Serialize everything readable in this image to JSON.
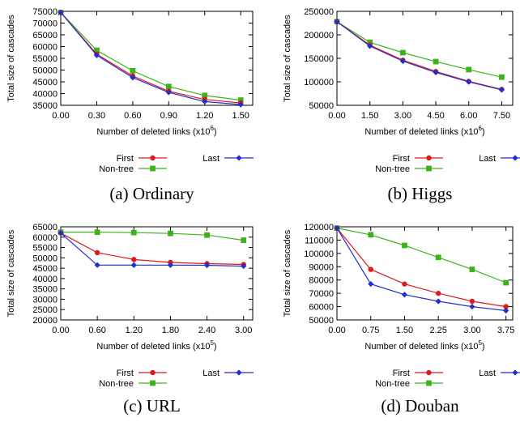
{
  "colors": {
    "First": "#e0191b",
    "Last": "#1f2fd0",
    "Non-tree": "#3cb31b"
  },
  "chart_data": [
    {
      "type": "line",
      "caption": "(a) Ordinary",
      "ylabel": "Total size of cascades",
      "xlabel_text": "Number of deleted links (x10",
      "xlabel_exp": "6",
      "xlabel_close": ")",
      "x": [
        0.0,
        0.3,
        0.6,
        0.9,
        1.2,
        1.5
      ],
      "xlim": [
        0.0,
        1.6
      ],
      "xticks": [
        "0.00",
        "0.30",
        "0.60",
        "0.90",
        "1.20",
        "1.50"
      ],
      "ylim": [
        35000,
        75000
      ],
      "yticks": [
        "35000",
        "40000",
        "45000",
        "50000",
        "55000",
        "60000",
        "65000",
        "70000",
        "75000"
      ],
      "series": [
        {
          "name": "First",
          "values": [
            74500,
            56800,
            47500,
            41000,
            37500,
            36000
          ]
        },
        {
          "name": "Last",
          "values": [
            74500,
            56300,
            46800,
            40500,
            36600,
            35300
          ]
        },
        {
          "name": "Non-tree",
          "values": [
            74500,
            58400,
            49700,
            43000,
            39200,
            37200
          ]
        }
      ]
    },
    {
      "type": "line",
      "caption": "(b) Higgs",
      "ylabel": "Total size of cascades",
      "xlabel_text": "Number of deleted links (x10",
      "xlabel_exp": "6",
      "xlabel_close": ")",
      "x": [
        0.0,
        1.5,
        3.0,
        4.5,
        6.0,
        7.5
      ],
      "xlim": [
        0.0,
        8.0
      ],
      "xticks": [
        "0.00",
        "1.50",
        "3.00",
        "4.50",
        "6.00",
        "7.50"
      ],
      "ylim": [
        50000,
        250000
      ],
      "yticks": [
        "50000",
        "100000",
        "150000",
        "200000",
        "250000"
      ],
      "series": [
        {
          "name": "First",
          "values": [
            228000,
            178000,
            146000,
            122000,
            101000,
            84000
          ]
        },
        {
          "name": "Last",
          "values": [
            228000,
            176000,
            144000,
            120000,
            100000,
            83000
          ]
        },
        {
          "name": "Non-tree",
          "values": [
            228000,
            184000,
            162000,
            143000,
            126000,
            110000
          ]
        }
      ]
    },
    {
      "type": "line",
      "caption": "(c) URL",
      "ylabel": "Total size of cascades",
      "xlabel_text": "Number of deleted links (x10",
      "xlabel_exp": "5",
      "xlabel_close": ")",
      "x": [
        0.0,
        0.6,
        1.2,
        1.8,
        2.4,
        3.0
      ],
      "xlim": [
        0.0,
        3.15
      ],
      "xticks": [
        "0.00",
        "0.60",
        "1.20",
        "1.80",
        "2.40",
        "3.00"
      ],
      "ylim": [
        20000,
        65000
      ],
      "yticks": [
        "20000",
        "25000",
        "30000",
        "35000",
        "40000",
        "45000",
        "50000",
        "55000",
        "60000",
        "65000"
      ],
      "series": [
        {
          "name": "First",
          "values": [
            62000,
            52500,
            49200,
            47800,
            47200,
            46800
          ]
        },
        {
          "name": "Last",
          "values": [
            62000,
            46500,
            46500,
            46500,
            46400,
            46000
          ]
        },
        {
          "name": "Non-tree",
          "values": [
            62400,
            62400,
            62200,
            61800,
            61000,
            58500
          ]
        }
      ]
    },
    {
      "type": "line",
      "caption": "(d) Douban",
      "ylabel": "Total size of cascades",
      "xlabel_text": "Number of deleted links (x10",
      "xlabel_exp": "5",
      "xlabel_close": ")",
      "x": [
        0.0,
        0.75,
        1.5,
        2.25,
        3.0,
        3.75
      ],
      "xlim": [
        0.0,
        3.9
      ],
      "xticks": [
        "0.00",
        "0.75",
        "1.50",
        "2.25",
        "3.00",
        "3.75"
      ],
      "ylim": [
        50000,
        120000
      ],
      "yticks": [
        "50000",
        "60000",
        "70000",
        "80000",
        "90000",
        "100000",
        "110000",
        "120000"
      ],
      "series": [
        {
          "name": "First",
          "values": [
            119000,
            88000,
            77000,
            70000,
            64000,
            60000
          ]
        },
        {
          "name": "Last",
          "values": [
            119000,
            77000,
            69000,
            64000,
            60000,
            57000
          ]
        },
        {
          "name": "Non-tree",
          "values": [
            119000,
            114000,
            106000,
            97000,
            88000,
            78000
          ]
        }
      ]
    }
  ]
}
